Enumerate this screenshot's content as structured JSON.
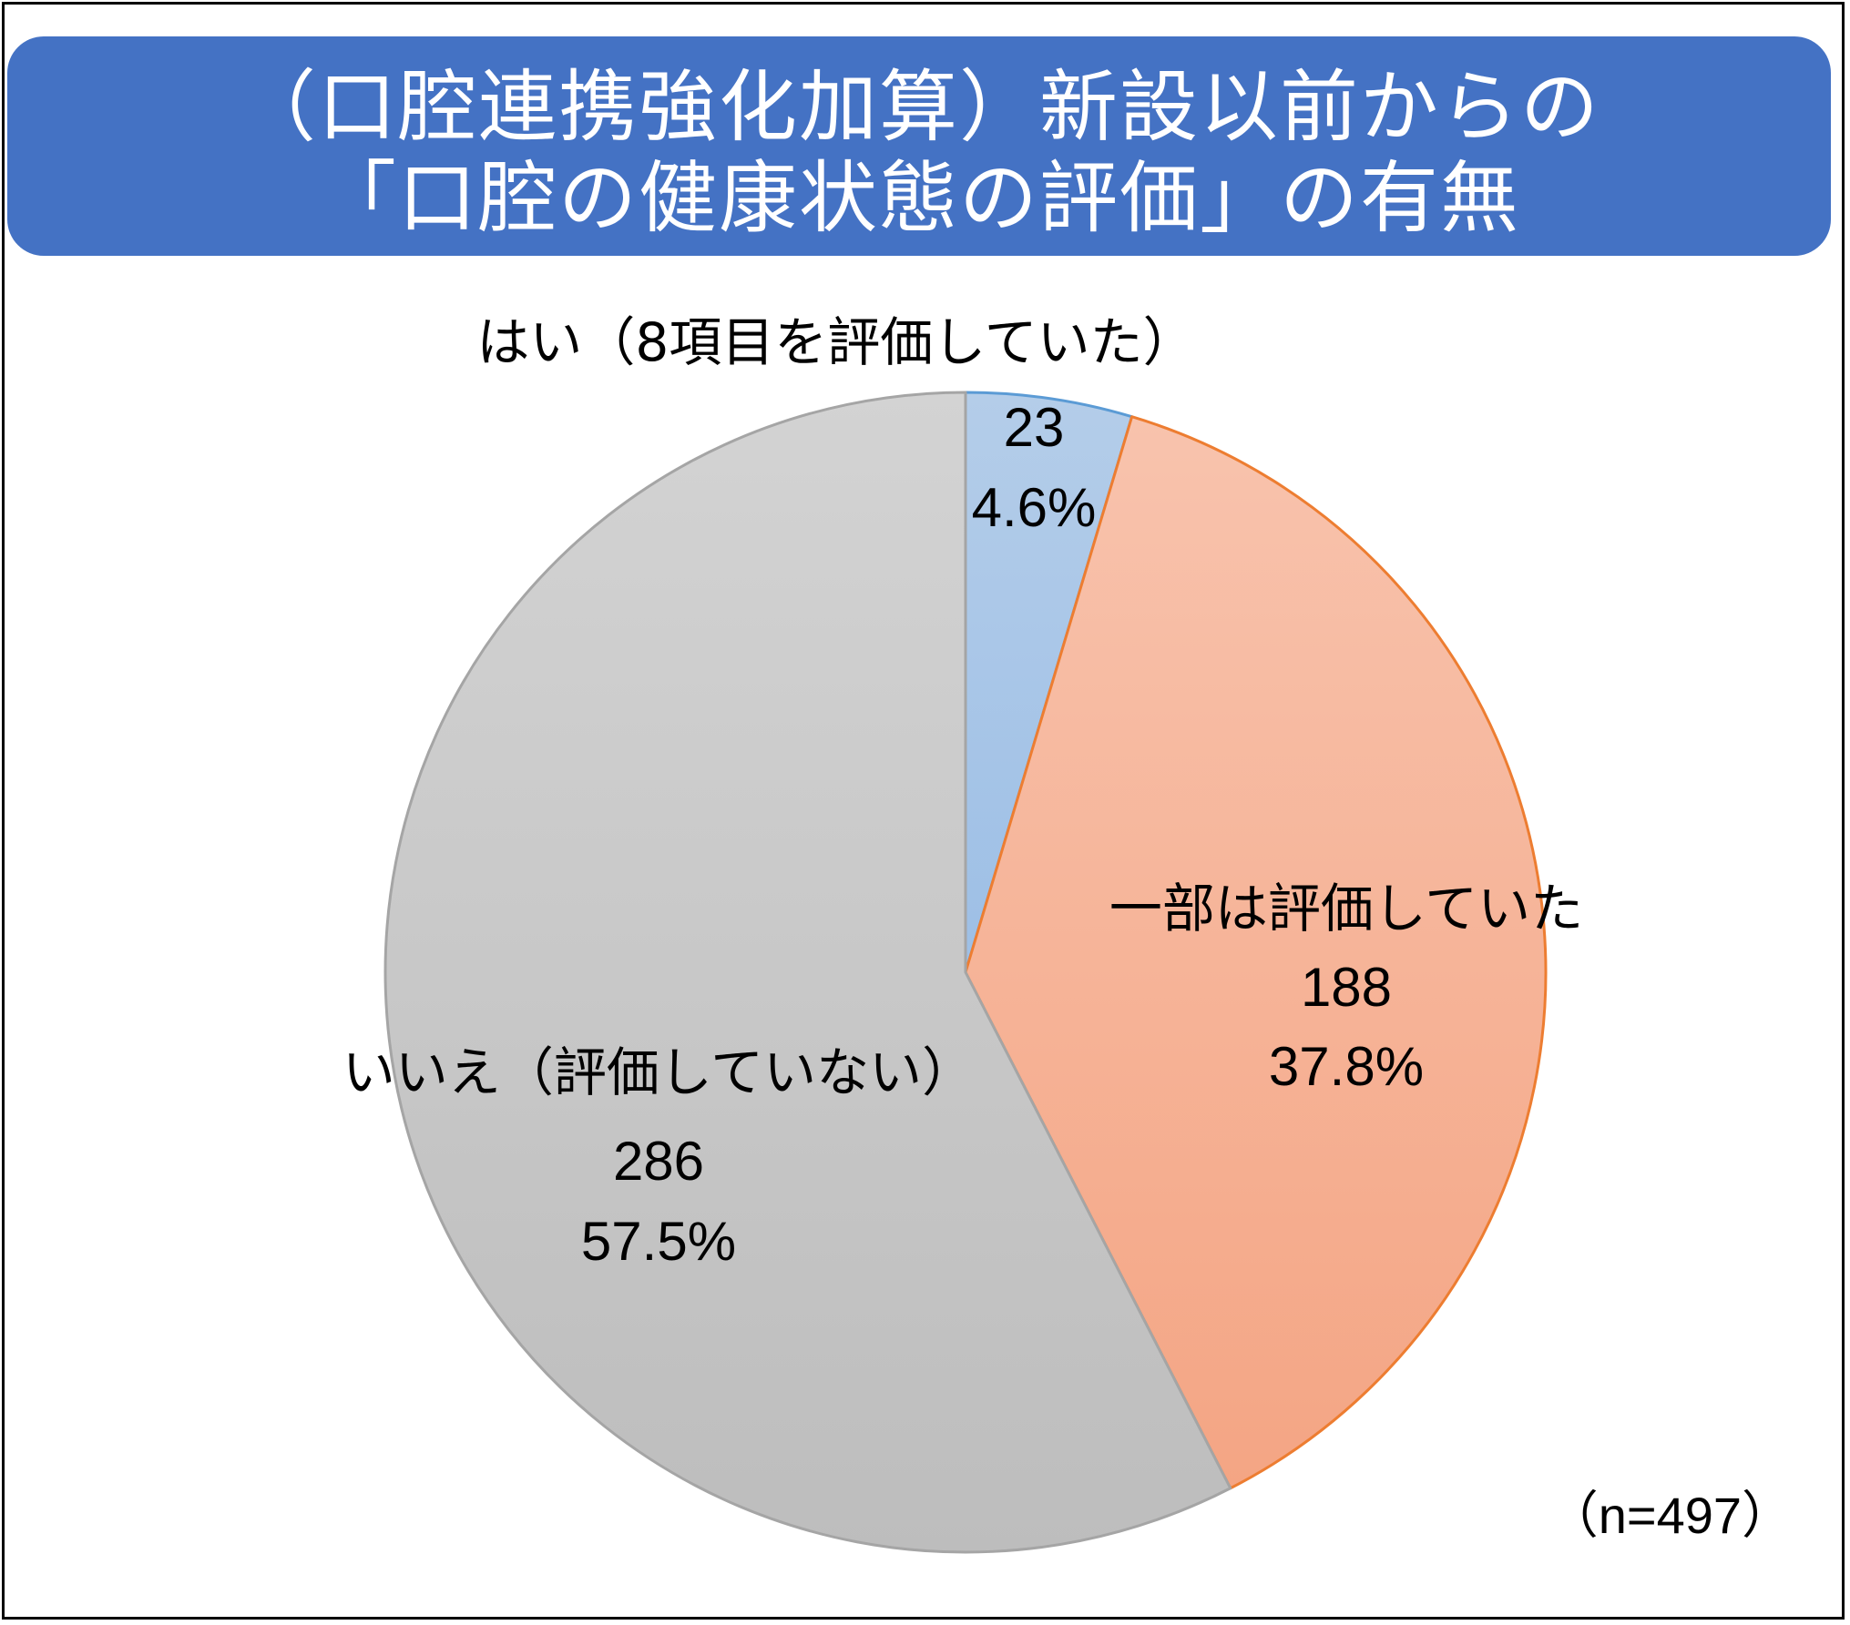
{
  "title": {
    "line1": "（口腔連携強化加算）新設以前からの",
    "line2": "「口腔の健康状態の評価」の有無"
  },
  "n_label": "（n=497）",
  "colors": {
    "title_bg": "#4472c4",
    "yes": "#a9c4e6",
    "yes_edge": "#5b9bd5",
    "partial": "#f6b49a",
    "partial_edge": "#ed7d31",
    "no": "#c8c8c8",
    "no_edge": "#a5a5a5"
  },
  "chart_data": {
    "type": "pie",
    "title": "（口腔連携強化加算）新設以前からの「口腔の健康状態の評価」の有無",
    "total": 497,
    "start_angle": "12 o'clock",
    "direction": "clockwise",
    "slices": [
      {
        "label": "はい（8項目を評価していた）",
        "value": 23,
        "percent": "4.6%"
      },
      {
        "label": "一部は評価していた",
        "value": 188,
        "percent": "37.8%"
      },
      {
        "label": "いいえ（評価していない）",
        "value": 286,
        "percent": "57.5%"
      }
    ]
  }
}
